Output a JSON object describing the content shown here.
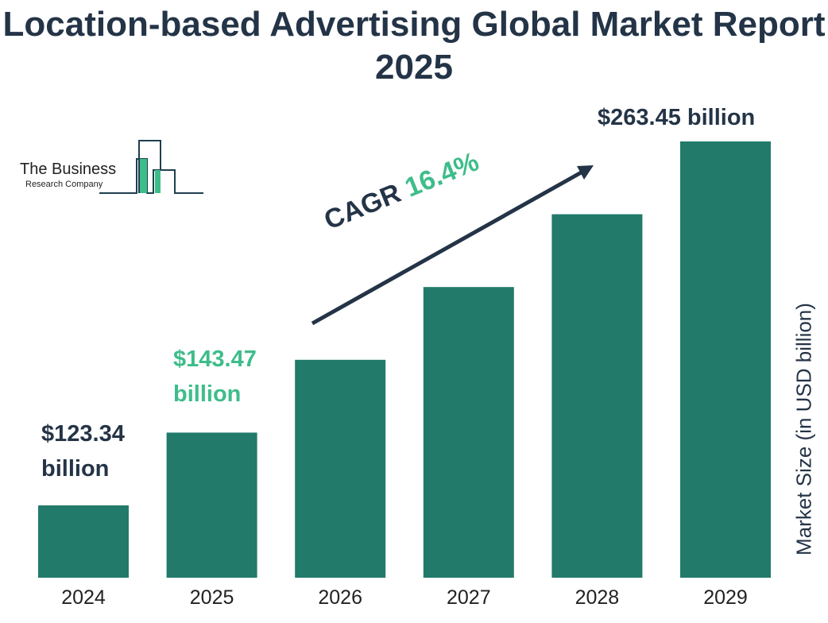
{
  "title": "Location-based Advertising Global Market Report 2025",
  "logo": {
    "line1": "The Business",
    "line2": "Research Company"
  },
  "cagr": {
    "label": "CAGR",
    "value": "16.4%"
  },
  "colors": {
    "bar": "#217a6a",
    "text": "#243447",
    "accent": "#3dbd8a"
  },
  "chart_data": {
    "type": "bar",
    "title": "Location-based Advertising Global Market Report 2025",
    "categories": [
      "2024",
      "2025",
      "2026",
      "2027",
      "2028",
      "2029"
    ],
    "values": [
      123.34,
      143.47,
      167.0,
      194.4,
      226.3,
      263.45
    ],
    "ylabel": "Market Size (in USD billion)",
    "xlabel": "",
    "grid": false,
    "data_labels": [
      {
        "category": "2024",
        "line1": "$123.34",
        "line2": "billion"
      },
      {
        "category": "2025",
        "line1": "$143.47",
        "line2": "billion"
      },
      {
        "category": "2029",
        "line1": "$263.45 billion",
        "line2": ""
      }
    ]
  }
}
